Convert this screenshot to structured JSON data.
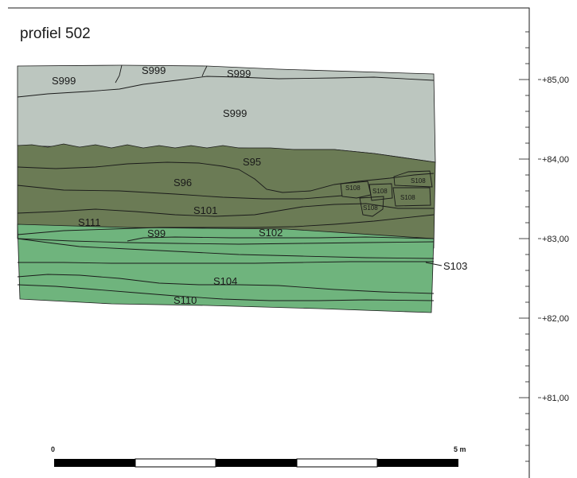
{
  "title": "profiel 502",
  "colors": {
    "grey_layer": "#bcc6bf",
    "dark_green": "#6b7b55",
    "light_green": "#6fb47d",
    "line": "#1a1a1a"
  },
  "units": {
    "u_s999_a": "S999",
    "u_s999_b": "S999",
    "u_s999_c": "S999",
    "u_s999_d": "S999",
    "u_s95": "S95",
    "u_s96": "S96",
    "u_s101": "S101",
    "u_s99": "S99",
    "u_s111": "S111",
    "u_s102": "S102",
    "u_s104": "S104",
    "u_s110": "S110",
    "u_s103": "S103",
    "u_s108_a": "S108",
    "u_s108_b": "S108",
    "u_s108_c": "S108",
    "u_s108_d": "S108",
    "u_s108_e": "S108"
  },
  "elevations": [
    "+85,00",
    "+84,00",
    "+83,00",
    "+82,00",
    "+81,00"
  ],
  "scale": {
    "start": "0",
    "end": "5 m"
  }
}
